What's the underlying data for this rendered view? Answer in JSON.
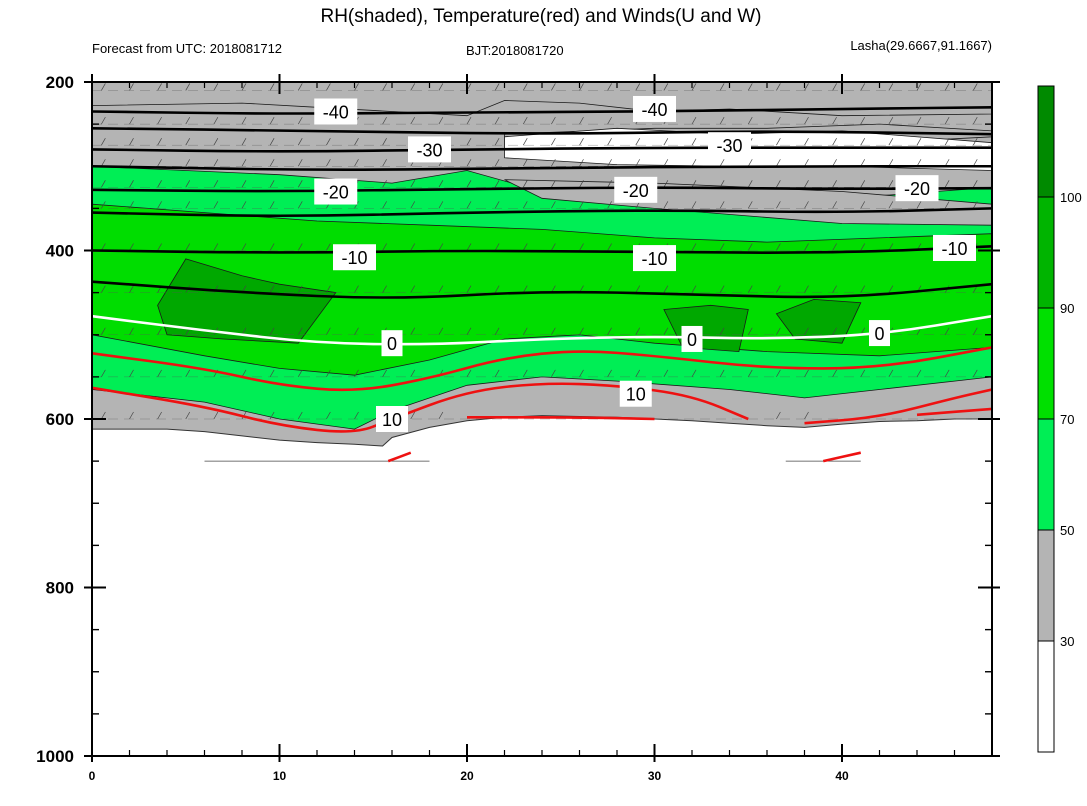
{
  "chart_data": {
    "type": "contour-cross-section",
    "title": "RH(shaded), Temperature(red) and Winds(U and W)",
    "subtitle_left": "Forecast from UTC: 2018081712",
    "subtitle_center": "BJT:2018081720",
    "subtitle_right": "Lasha(29.6667,91.1667)",
    "x": {
      "min": 0,
      "max": 48,
      "ticks": [
        "0",
        "10",
        "20",
        "30",
        "40"
      ],
      "tick_values": [
        0,
        10,
        20,
        30,
        40
      ]
    },
    "y": {
      "min": 200,
      "max": 1000,
      "reversed": true,
      "ticks": [
        "200",
        "400",
        "600",
        "800",
        "1000"
      ],
      "tick_values": [
        200,
        400,
        600,
        800,
        1000
      ]
    },
    "colorbar": {
      "labels": [
        "30",
        "50",
        "70",
        "90",
        "100"
      ],
      "levels": [
        30,
        50,
        70,
        90,
        100
      ],
      "colors": [
        "#ffffff",
        "#b4b4b4",
        "#00ee55",
        "#00e000",
        "#00b400",
        "#008a00"
      ]
    },
    "surface_pressure": [
      [
        0,
        612
      ],
      [
        2,
        612
      ],
      [
        4,
        612
      ],
      [
        6,
        615
      ],
      [
        8,
        620
      ],
      [
        10,
        625
      ],
      [
        12,
        628
      ],
      [
        14,
        630
      ],
      [
        15.5,
        632
      ],
      [
        16,
        622
      ],
      [
        18,
        610
      ],
      [
        20,
        602
      ],
      [
        22,
        598
      ],
      [
        24,
        596
      ],
      [
        26,
        597
      ],
      [
        28,
        598
      ],
      [
        30,
        600
      ],
      [
        32,
        602
      ],
      [
        34,
        605
      ],
      [
        36,
        608
      ],
      [
        38,
        610
      ],
      [
        40,
        606
      ],
      [
        42,
        603
      ],
      [
        44,
        602
      ],
      [
        46,
        600
      ],
      [
        48,
        600
      ]
    ],
    "rh_bands": [
      {
        "level": "50",
        "color": "#00ee55",
        "top": [
          [
            0,
            300
          ],
          [
            10,
            310
          ],
          [
            16,
            320
          ],
          [
            20,
            305
          ],
          [
            24,
            330
          ],
          [
            30,
            340
          ],
          [
            36,
            345
          ],
          [
            42,
            335
          ],
          [
            48,
            325
          ]
        ],
        "bottom": [
          [
            0,
            565
          ],
          [
            6,
            580
          ],
          [
            10,
            600
          ],
          [
            14,
            612
          ],
          [
            16,
            590
          ],
          [
            20,
            560
          ],
          [
            24,
            550
          ],
          [
            28,
            555
          ],
          [
            34,
            565
          ],
          [
            38,
            575
          ],
          [
            42,
            565
          ],
          [
            46,
            555
          ],
          [
            48,
            550
          ]
        ]
      },
      {
        "level": "70",
        "color": "#00dd00",
        "top": [
          [
            0,
            345
          ],
          [
            6,
            355
          ],
          [
            12,
            365
          ],
          [
            18,
            370
          ],
          [
            24,
            375
          ],
          [
            30,
            385
          ],
          [
            36,
            390
          ],
          [
            42,
            385
          ],
          [
            48,
            380
          ]
        ],
        "bottom": [
          [
            0,
            500
          ],
          [
            6,
            525
          ],
          [
            10,
            540
          ],
          [
            14,
            548
          ],
          [
            18,
            530
          ],
          [
            22,
            505
          ],
          [
            26,
            500
          ],
          [
            30,
            510
          ],
          [
            36,
            520
          ],
          [
            42,
            525
          ],
          [
            48,
            515
          ]
        ]
      },
      {
        "level": "90",
        "color": "#00a800",
        "top": [
          [
            3.5,
            465
          ],
          [
            5,
            410
          ],
          [
            8,
            430
          ],
          [
            10,
            440
          ],
          [
            13,
            450
          ],
          [
            11,
            510
          ],
          [
            7,
            505
          ],
          [
            4,
            500
          ]
        ],
        "bottom": []
      },
      {
        "level": "90b",
        "color": "#00a800",
        "top": [
          [
            30.5,
            470
          ],
          [
            33,
            465
          ],
          [
            35,
            470
          ],
          [
            34.5,
            520
          ],
          [
            31.5,
            515
          ]
        ],
        "bottom": []
      },
      {
        "level": "90c",
        "color": "#00a800",
        "top": [
          [
            36.5,
            475
          ],
          [
            38.5,
            458
          ],
          [
            41,
            462
          ],
          [
            40,
            510
          ],
          [
            37.5,
            505
          ]
        ],
        "bottom": []
      }
    ],
    "gray_dry_zones": [
      [
        [
          0,
          200
        ],
        [
          48,
          200
        ],
        [
          48,
          238
        ],
        [
          40,
          240
        ],
        [
          34,
          232
        ],
        [
          30,
          235
        ],
        [
          26,
          225
        ],
        [
          22,
          222
        ],
        [
          20,
          240
        ],
        [
          16,
          235
        ],
        [
          12,
          230
        ],
        [
          8,
          225
        ],
        [
          0,
          228
        ]
      ],
      [
        [
          22,
          262
        ],
        [
          30,
          255
        ],
        [
          36,
          255
        ],
        [
          42,
          250
        ],
        [
          48,
          258
        ],
        [
          48,
          265
        ],
        [
          42,
          272
        ],
        [
          36,
          282
        ],
        [
          30,
          288
        ],
        [
          24,
          290
        ],
        [
          22,
          280
        ]
      ],
      [
        [
          22,
          316
        ],
        [
          30,
          320
        ],
        [
          40,
          330
        ],
        [
          48,
          345
        ],
        [
          48,
          370
        ],
        [
          40,
          368
        ],
        [
          30,
          350
        ],
        [
          24,
          338
        ]
      ]
    ],
    "white_zones": [
      [
        [
          22,
          265
        ],
        [
          28,
          255
        ],
        [
          34,
          262
        ],
        [
          40,
          258
        ],
        [
          48,
          272
        ],
        [
          48,
          305
        ],
        [
          40,
          300
        ],
        [
          34,
          300
        ],
        [
          28,
          298
        ],
        [
          22,
          290
        ]
      ]
    ],
    "isotherms_black": [
      {
        "label": "-40",
        "label_at": [
          13,
          235
        ],
        "points": [
          [
            0,
            235
          ],
          [
            10,
            238
          ],
          [
            20,
            236
          ],
          [
            30,
            235
          ],
          [
            40,
            232
          ],
          [
            48,
            230
          ]
        ]
      },
      {
        "label": "-40",
        "label_at": [
          30,
          232
        ],
        "points": []
      },
      {
        "label": "",
        "points": [
          [
            0,
            255
          ],
          [
            12,
            258
          ],
          [
            24,
            262
          ],
          [
            36,
            258
          ],
          [
            48,
            262
          ]
        ]
      },
      {
        "label": "-30",
        "label_at": [
          18,
          280
        ],
        "points": [
          [
            0,
            280
          ],
          [
            10,
            283
          ],
          [
            20,
            280
          ],
          [
            30,
            278
          ],
          [
            40,
            278
          ],
          [
            48,
            278
          ]
        ]
      },
      {
        "label": "-30",
        "label_at": [
          34,
          275
        ],
        "points": []
      },
      {
        "label": "",
        "points": [
          [
            0,
            300
          ],
          [
            12,
            305
          ],
          [
            24,
            302
          ],
          [
            36,
            300
          ],
          [
            48,
            300
          ]
        ]
      },
      {
        "label": "-20",
        "label_at": [
          13,
          330
        ],
        "points": [
          [
            0,
            328
          ],
          [
            10,
            330
          ],
          [
            20,
            327
          ],
          [
            30,
            325
          ],
          [
            40,
            327
          ],
          [
            48,
            326
          ]
        ]
      },
      {
        "label": "-20",
        "label_at": [
          29,
          328
        ],
        "points": []
      },
      {
        "label": "-20",
        "label_at": [
          44,
          326
        ],
        "points": []
      },
      {
        "label": "",
        "points": [
          [
            0,
            355
          ],
          [
            10,
            360
          ],
          [
            20,
            355
          ],
          [
            30,
            352
          ],
          [
            40,
            355
          ],
          [
            48,
            350
          ]
        ]
      },
      {
        "label": "-10",
        "label_at": [
          14,
          408
        ],
        "points": [
          [
            0,
            400
          ],
          [
            10,
            403
          ],
          [
            20,
            400
          ],
          [
            30,
            402
          ],
          [
            40,
            403
          ],
          [
            48,
            395
          ]
        ]
      },
      {
        "label": "-10",
        "label_at": [
          30,
          409
        ],
        "points": []
      },
      {
        "label": "-10",
        "label_at": [
          46,
          397
        ],
        "points": []
      },
      {
        "label": "",
        "points": [
          [
            0,
            437
          ],
          [
            8,
            450
          ],
          [
            16,
            458
          ],
          [
            24,
            448
          ],
          [
            32,
            452
          ],
          [
            40,
            457
          ],
          [
            48,
            440
          ]
        ]
      }
    ],
    "isotherm_zero": {
      "label": "0",
      "label_at": [
        16,
        510
      ],
      "label_at2": [
        32,
        505
      ],
      "label_at3": [
        42,
        498
      ],
      "points": [
        [
          0,
          478
        ],
        [
          6,
          495
        ],
        [
          12,
          510
        ],
        [
          18,
          512
        ],
        [
          24,
          505
        ],
        [
          30,
          502
        ],
        [
          36,
          505
        ],
        [
          42,
          500
        ],
        [
          48,
          478
        ]
      ]
    },
    "isotherms_red": [
      {
        "label": "",
        "points": [
          [
            0,
            522
          ],
          [
            6,
            540
          ],
          [
            10,
            560
          ],
          [
            14,
            568
          ],
          [
            18,
            552
          ],
          [
            22,
            527
          ],
          [
            26,
            518
          ],
          [
            30,
            525
          ],
          [
            36,
            540
          ],
          [
            42,
            540
          ],
          [
            48,
            515
          ]
        ]
      },
      {
        "label": "10",
        "label_at": [
          16,
          600
        ],
        "label_at2": [
          29,
          570
        ],
        "points": [
          [
            0,
            563
          ],
          [
            6,
            585
          ],
          [
            10,
            608
          ],
          [
            14,
            618
          ],
          [
            16,
            600
          ],
          [
            20,
            567
          ],
          [
            24,
            557
          ],
          [
            28,
            560
          ],
          [
            32,
            572
          ],
          [
            35,
            600
          ]
        ]
      },
      {
        "label": "",
        "points": [
          [
            38,
            605
          ],
          [
            42,
            598
          ],
          [
            46,
            575
          ],
          [
            48,
            565
          ]
        ]
      },
      {
        "label": "",
        "points": [
          [
            20,
            598
          ],
          [
            26,
            598
          ],
          [
            30,
            600
          ]
        ]
      },
      {
        "label": "",
        "points": [
          [
            44,
            595
          ],
          [
            48,
            588
          ]
        ]
      },
      {
        "label": "",
        "points": [
          [
            15.8,
            650
          ],
          [
            17,
            640
          ]
        ]
      },
      {
        "label": "",
        "points": [
          [
            39,
            650
          ],
          [
            41,
            640
          ]
        ]
      }
    ]
  }
}
